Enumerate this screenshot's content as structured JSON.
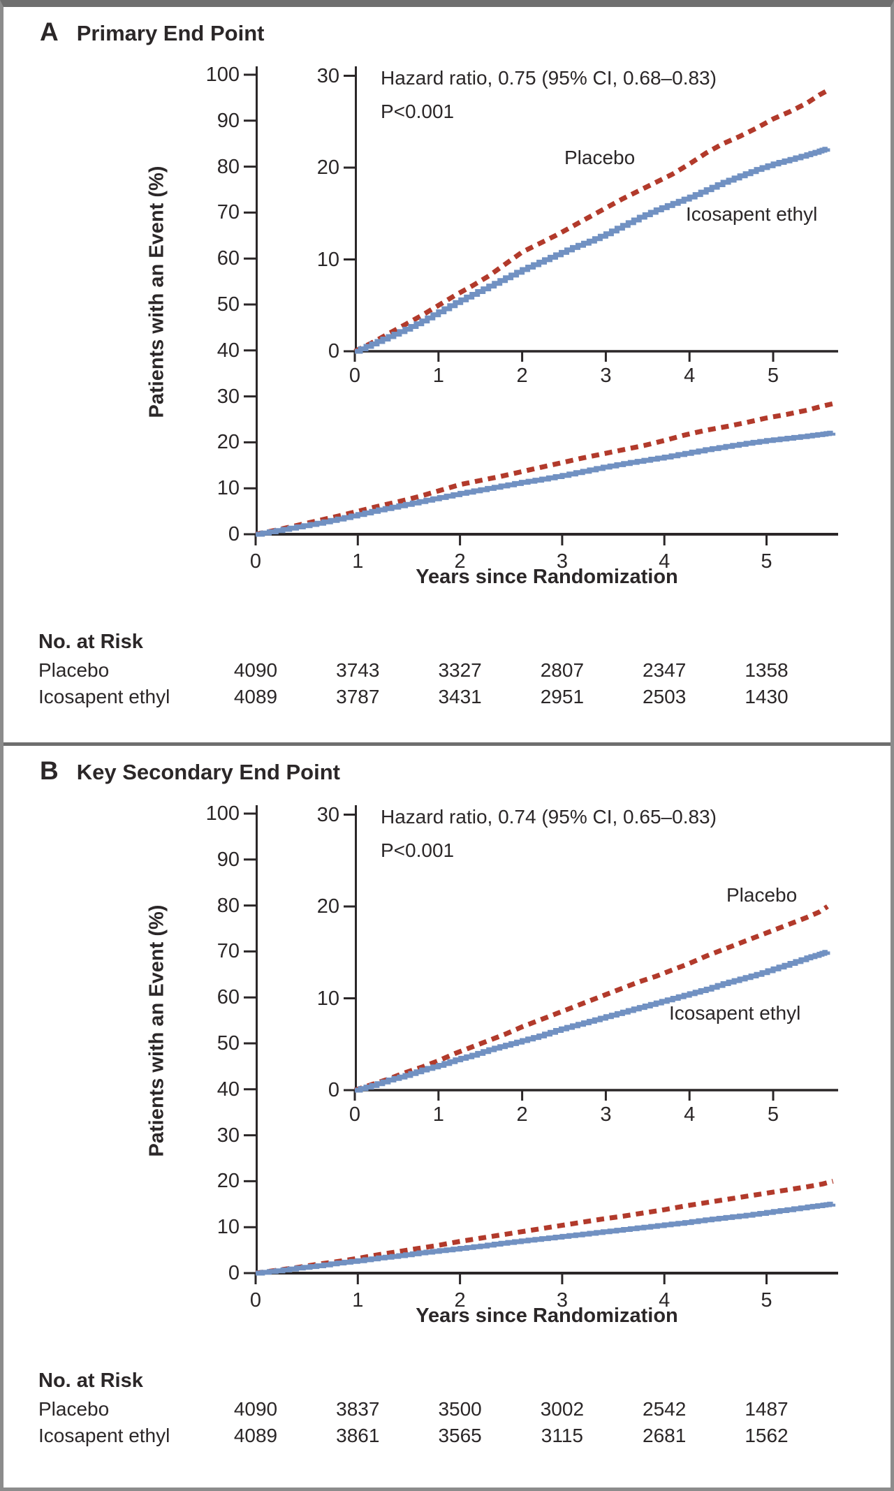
{
  "figure": {
    "border_color": "#6f6f6f",
    "background": "#ffffff",
    "axis_color": "#2b2728",
    "text_color": "#2b2728"
  },
  "chart_data": [
    {
      "type": "line",
      "panel_label": "A",
      "title": "Primary End Point",
      "annotation_line1": "Hazard ratio, 0.75 (95% CI, 0.68–0.83)",
      "annotation_line2": "P<0.001",
      "y_label": "Patients with an Event (%)",
      "x_label": "Years since Randomization",
      "xlim": [
        0,
        5.7
      ],
      "main_ylim": [
        0,
        100
      ],
      "inset_ylim": [
        0,
        30
      ],
      "main_y_ticks": [
        100,
        90,
        80,
        70,
        60,
        50,
        40,
        30,
        20,
        10,
        0
      ],
      "inset_y_ticks": [
        30,
        20,
        10,
        0
      ],
      "x_ticks": [
        0,
        1,
        2,
        3,
        4,
        5
      ],
      "curve_label_placebo": "Placebo",
      "curve_label_icosapent": "Icosapent ethyl",
      "series": [
        {
          "name": "Placebo",
          "line_style": "dashed",
          "color": "#b23a2b",
          "points": [
            [
              0,
              0
            ],
            [
              0.2,
              0.9
            ],
            [
              0.4,
              1.9
            ],
            [
              0.6,
              2.9
            ],
            [
              0.8,
              3.9
            ],
            [
              1,
              5
            ],
            [
              1.2,
              6.1
            ],
            [
              1.4,
              7.1
            ],
            [
              1.6,
              8.2
            ],
            [
              1.8,
              9.5
            ],
            [
              2,
              10.8
            ],
            [
              2.2,
              11.7
            ],
            [
              2.4,
              12.6
            ],
            [
              2.6,
              13.6
            ],
            [
              2.8,
              14.6
            ],
            [
              3,
              15.6
            ],
            [
              3.2,
              16.6
            ],
            [
              3.4,
              17.5
            ],
            [
              3.6,
              18.4
            ],
            [
              3.8,
              19.3
            ],
            [
              4,
              20.4
            ],
            [
              4.2,
              21.6
            ],
            [
              4.4,
              22.6
            ],
            [
              4.6,
              23.4
            ],
            [
              4.8,
              24.3
            ],
            [
              5,
              25.3
            ],
            [
              5.2,
              26.1
            ],
            [
              5.4,
              27
            ],
            [
              5.55,
              27.9
            ],
            [
              5.65,
              28.4
            ]
          ]
        },
        {
          "name": "Icosapent ethyl",
          "line_style": "solid",
          "color": "#7191c2",
          "points": [
            [
              0,
              0
            ],
            [
              0.2,
              0.8
            ],
            [
              0.4,
              1.6
            ],
            [
              0.6,
              2.4
            ],
            [
              0.8,
              3.3
            ],
            [
              1,
              4.3
            ],
            [
              1.2,
              5.3
            ],
            [
              1.4,
              6.2
            ],
            [
              1.6,
              7.1
            ],
            [
              1.8,
              8
            ],
            [
              2,
              8.9
            ],
            [
              2.2,
              9.7
            ],
            [
              2.4,
              10.5
            ],
            [
              2.6,
              11.3
            ],
            [
              2.8,
              12
            ],
            [
              3,
              12.8
            ],
            [
              3.2,
              13.7
            ],
            [
              3.4,
              14.6
            ],
            [
              3.6,
              15.4
            ],
            [
              3.8,
              16.1
            ],
            [
              4,
              16.8
            ],
            [
              4.2,
              17.6
            ],
            [
              4.4,
              18.4
            ],
            [
              4.6,
              19.1
            ],
            [
              4.8,
              19.8
            ],
            [
              5,
              20.4
            ],
            [
              5.2,
              20.9
            ],
            [
              5.4,
              21.4
            ],
            [
              5.55,
              21.8
            ],
            [
              5.65,
              22.1
            ]
          ]
        }
      ],
      "no_at_risk": {
        "heading": "No. at Risk",
        "rows": [
          {
            "label": "Placebo",
            "values": [
              "4090",
              "3743",
              "3327",
              "2807",
              "2347",
              "1358"
            ]
          },
          {
            "label": "Icosapent ethyl",
            "values": [
              "4089",
              "3787",
              "3431",
              "2951",
              "2503",
              "1430"
            ]
          }
        ]
      }
    },
    {
      "type": "line",
      "panel_label": "B",
      "title": "Key Secondary End Point",
      "annotation_line1": "Hazard ratio, 0.74 (95% CI, 0.65–0.83)",
      "annotation_line2": "P<0.001",
      "y_label": "Patients with an Event (%)",
      "x_label": "Years since Randomization",
      "xlim": [
        0,
        5.7
      ],
      "main_ylim": [
        0,
        100
      ],
      "inset_ylim": [
        0,
        30
      ],
      "main_y_ticks": [
        100,
        90,
        80,
        70,
        60,
        50,
        40,
        30,
        20,
        10,
        0
      ],
      "inset_y_ticks": [
        30,
        20,
        10,
        0
      ],
      "x_ticks": [
        0,
        1,
        2,
        3,
        4,
        5
      ],
      "curve_label_placebo": "Placebo",
      "curve_label_icosapent": "Icosapent ethyl",
      "series": [
        {
          "name": "Placebo",
          "line_style": "dashed",
          "color": "#b23a2b",
          "points": [
            [
              0,
              0
            ],
            [
              0.2,
              0.6
            ],
            [
              0.4,
              1.2
            ],
            [
              0.6,
              1.9
            ],
            [
              0.8,
              2.5
            ],
            [
              1,
              3.2
            ],
            [
              1.2,
              4
            ],
            [
              1.4,
              4.7
            ],
            [
              1.6,
              5.4
            ],
            [
              1.8,
              6.1
            ],
            [
              2,
              6.9
            ],
            [
              2.2,
              7.6
            ],
            [
              2.4,
              8.3
            ],
            [
              2.6,
              9
            ],
            [
              2.8,
              9.7
            ],
            [
              3,
              10.4
            ],
            [
              3.2,
              11.1
            ],
            [
              3.4,
              11.8
            ],
            [
              3.6,
              12.4
            ],
            [
              3.8,
              13.1
            ],
            [
              4,
              13.8
            ],
            [
              4.2,
              14.6
            ],
            [
              4.4,
              15.3
            ],
            [
              4.6,
              16
            ],
            [
              4.8,
              16.7
            ],
            [
              5,
              17.4
            ],
            [
              5.2,
              18.1
            ],
            [
              5.4,
              18.8
            ],
            [
              5.55,
              19.4
            ],
            [
              5.65,
              20
            ]
          ]
        },
        {
          "name": "Icosapent ethyl",
          "line_style": "solid",
          "color": "#7191c2",
          "points": [
            [
              0,
              0
            ],
            [
              0.2,
              0.5
            ],
            [
              0.4,
              1.1
            ],
            [
              0.6,
              1.6
            ],
            [
              0.8,
              2.2
            ],
            [
              1,
              2.7
            ],
            [
              1.2,
              3.3
            ],
            [
              1.4,
              3.8
            ],
            [
              1.6,
              4.4
            ],
            [
              1.8,
              4.9
            ],
            [
              2,
              5.4
            ],
            [
              2.2,
              5.9
            ],
            [
              2.4,
              6.5
            ],
            [
              2.6,
              7
            ],
            [
              2.8,
              7.5
            ],
            [
              3,
              8
            ],
            [
              3.2,
              8.5
            ],
            [
              3.4,
              9
            ],
            [
              3.6,
              9.5
            ],
            [
              3.8,
              10
            ],
            [
              4,
              10.5
            ],
            [
              4.2,
              11
            ],
            [
              4.4,
              11.6
            ],
            [
              4.6,
              12.1
            ],
            [
              4.8,
              12.6
            ],
            [
              5,
              13.2
            ],
            [
              5.2,
              13.8
            ],
            [
              5.4,
              14.4
            ],
            [
              5.55,
              14.8
            ],
            [
              5.65,
              15.1
            ]
          ]
        }
      ],
      "no_at_risk": {
        "heading": "No. at Risk",
        "rows": [
          {
            "label": "Placebo",
            "values": [
              "4090",
              "3837",
              "3500",
              "3002",
              "2542",
              "1487"
            ]
          },
          {
            "label": "Icosapent ethyl",
            "values": [
              "4089",
              "3861",
              "3565",
              "3115",
              "2681",
              "1562"
            ]
          }
        ]
      }
    }
  ]
}
